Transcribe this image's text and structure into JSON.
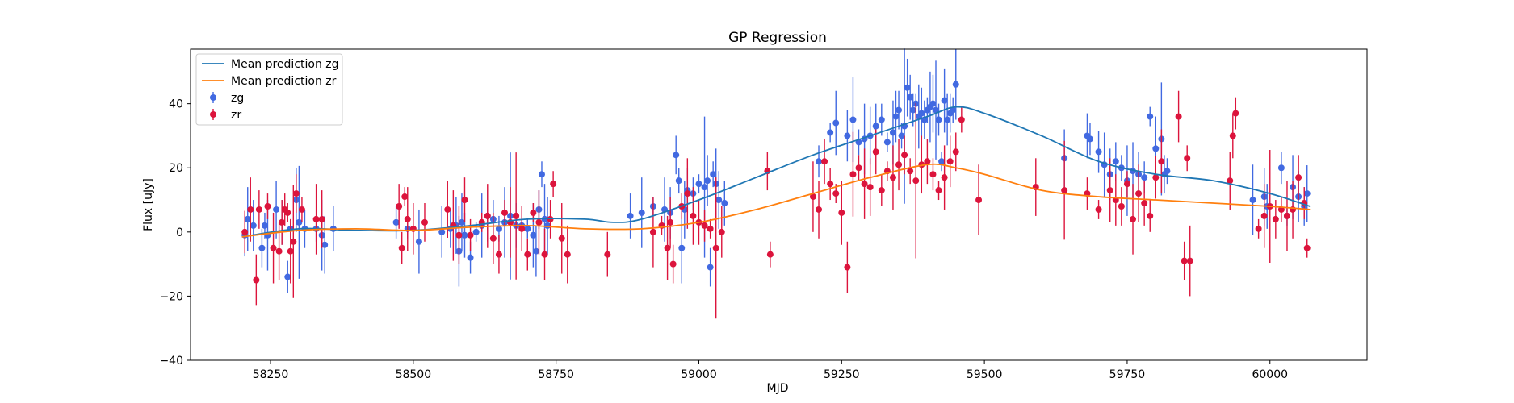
{
  "chart_data": {
    "type": "scatter",
    "title": "GP Regression",
    "xlabel": "MJD",
    "ylabel": "Flux [uJy]",
    "xlim": [
      58110,
      60170
    ],
    "ylim": [
      -40,
      57
    ],
    "xticks": [
      58250,
      58500,
      58750,
      59000,
      59250,
      59500,
      59750,
      60000
    ],
    "xtick_labels": [
      "58250",
      "58500",
      "58750",
      "59000",
      "59250",
      "59500",
      "59750",
      "60000"
    ],
    "yticks": [
      -40,
      -20,
      0,
      20,
      40
    ],
    "ytick_labels": [
      "−40",
      "−20",
      "0",
      "20",
      "40"
    ],
    "grid": false,
    "legend_position": "upper left",
    "legend": [
      {
        "label": "Mean prediction zg",
        "kind": "line",
        "color": "#1f77b4"
      },
      {
        "label": "Mean prediction zr",
        "kind": "line",
        "color": "#ff7f0e"
      },
      {
        "label": "zg",
        "kind": "errorbar",
        "color": "#4169e1"
      },
      {
        "label": "zr",
        "kind": "errorbar",
        "color": "#dc143c"
      }
    ],
    "series": [
      {
        "name": "Mean prediction zg",
        "kind": "line",
        "color": "#1f77b4",
        "x": [
          58200,
          58300,
          58400,
          58500,
          58600,
          58700,
          58800,
          58850,
          58900,
          59000,
          59100,
          59200,
          59300,
          59400,
          59450,
          59500,
          59600,
          59700,
          59800,
          59900,
          60000,
          60070
        ],
        "y": [
          -1.5,
          1,
          0.5,
          0.5,
          2,
          4,
          4,
          3,
          4,
          10,
          17,
          24,
          30,
          36,
          39,
          37,
          30,
          22,
          18,
          16,
          12,
          8
        ]
      },
      {
        "name": "Mean prediction zr",
        "kind": "line",
        "color": "#ff7f0e",
        "x": [
          58200,
          58300,
          58400,
          58500,
          58600,
          58700,
          58800,
          58900,
          59000,
          59100,
          59200,
          59300,
          59400,
          59450,
          59500,
          59600,
          59700,
          59800,
          59900,
          60000,
          60070
        ],
        "y": [
          -1.5,
          0.5,
          1,
          0.5,
          1.5,
          2,
          1,
          1,
          3,
          7,
          12,
          17,
          21,
          20,
          18,
          13,
          11,
          10,
          9,
          8,
          7
        ]
      },
      {
        "name": "zg",
        "kind": "errorbar",
        "color": "#4169e1",
        "x": [
          58205,
          58210,
          58220,
          58235,
          58240,
          58245,
          58260,
          58270,
          58280,
          58285,
          58295,
          58300,
          58310,
          58330,
          58340,
          58345,
          58360,
          58470,
          58490,
          58510,
          58550,
          58565,
          58575,
          58580,
          58585,
          58590,
          58600,
          58610,
          58620,
          58630,
          58640,
          58650,
          58660,
          58670,
          58680,
          58690,
          58700,
          58710,
          58715,
          58720,
          58725,
          58730,
          58735,
          58880,
          58900,
          58920,
          58940,
          58950,
          58960,
          58965,
          58970,
          58975,
          58980,
          58990,
          59000,
          59010,
          59015,
          59020,
          59025,
          59030,
          59035,
          59045,
          59210,
          59230,
          59240,
          59260,
          59270,
          59280,
          59290,
          59300,
          59310,
          59320,
          59330,
          59340,
          59345,
          59350,
          59355,
          59360,
          59365,
          59370,
          59375,
          59380,
          59385,
          59390,
          59395,
          59400,
          59405,
          59410,
          59415,
          59420,
          59425,
          59430,
          59435,
          59440,
          59445,
          59450,
          59640,
          59680,
          59685,
          59700,
          59710,
          59720,
          59730,
          59740,
          59750,
          59760,
          59770,
          59780,
          59790,
          59800,
          59810,
          59815,
          59820,
          59970,
          59990,
          59995,
          60020,
          60030,
          60040,
          60050,
          60060,
          60065
        ],
        "y": [
          -1,
          4,
          2,
          -5,
          2,
          -1,
          7,
          3,
          -14,
          1,
          10,
          3,
          1,
          1,
          -1,
          -4,
          1,
          3,
          1,
          -3,
          0,
          1,
          2,
          -6,
          3,
          -1,
          -8,
          0,
          2,
          5,
          4,
          1,
          3,
          5,
          2,
          2,
          1,
          -1,
          -6,
          7,
          18,
          4,
          2,
          5,
          6,
          8,
          7,
          6,
          24,
          16,
          -5,
          7,
          13,
          12,
          15,
          14,
          16,
          -11,
          18,
          15,
          10,
          9,
          22,
          31,
          34,
          30,
          35,
          28,
          29,
          30,
          33,
          35,
          28,
          31,
          36,
          38,
          30,
          33,
          45,
          42,
          38,
          40,
          36,
          37,
          35,
          38,
          39,
          40,
          38,
          35,
          22,
          41,
          35,
          37,
          38,
          46,
          23,
          30,
          29,
          25,
          21,
          18,
          22,
          20,
          16,
          19,
          18,
          17,
          36,
          26,
          29,
          18,
          19,
          10,
          11,
          8,
          20,
          5,
          14,
          11,
          8,
          12
        ]
      },
      {
        "name": "zr",
        "kind": "errorbar",
        "color": "#dc143c",
        "x": [
          58205,
          58215,
          58225,
          58230,
          58245,
          58255,
          58265,
          58270,
          58275,
          58280,
          58285,
          58290,
          58295,
          58305,
          58330,
          58340,
          58475,
          58480,
          58485,
          58490,
          58500,
          58520,
          58560,
          58570,
          58580,
          58590,
          58600,
          58620,
          58630,
          58640,
          58650,
          58660,
          58670,
          58680,
          58690,
          58700,
          58710,
          58720,
          58730,
          58740,
          58745,
          58760,
          58770,
          58840,
          58920,
          58935,
          58945,
          58950,
          58955,
          58970,
          58980,
          58990,
          59000,
          59010,
          59020,
          59030,
          59040,
          59120,
          59125,
          59200,
          59210,
          59220,
          59230,
          59240,
          59250,
          59260,
          59270,
          59280,
          59290,
          59300,
          59310,
          59320,
          59330,
          59340,
          59350,
          59360,
          59370,
          59380,
          59390,
          59400,
          59410,
          59420,
          59430,
          59440,
          59450,
          59460,
          59490,
          59590,
          59640,
          59680,
          59700,
          59720,
          59730,
          59740,
          59750,
          59760,
          59770,
          59780,
          59790,
          59800,
          59810,
          59840,
          59850,
          59855,
          59860,
          59930,
          59935,
          59940,
          59980,
          59990,
          60000,
          60010,
          60020,
          60030,
          60040,
          60050,
          60060,
          60065
        ],
        "y": [
          0,
          7,
          -15,
          7,
          8,
          -5,
          -6,
          3,
          7,
          6,
          -6,
          -3,
          12,
          7,
          4,
          4,
          8,
          -5,
          11,
          4,
          1,
          3,
          7,
          2,
          -1,
          10,
          -1,
          3,
          5,
          -2,
          -7,
          6,
          3,
          5,
          1,
          -7,
          6,
          3,
          -7,
          4,
          15,
          -2,
          -7,
          -7,
          0,
          2,
          -5,
          3,
          -10,
          8,
          12,
          5,
          3,
          2,
          1,
          -5,
          0,
          19,
          -7,
          11,
          7,
          22,
          15,
          12,
          6,
          -11,
          18,
          20,
          15,
          14,
          25,
          13,
          19,
          17,
          21,
          24,
          19,
          16,
          21,
          22,
          18,
          13,
          17,
          22,
          25,
          35,
          10,
          14,
          13,
          12,
          7,
          13,
          10,
          8,
          15,
          4,
          12,
          9,
          5,
          17,
          22,
          36,
          -9,
          23,
          -9,
          16,
          30,
          37,
          1,
          5,
          8,
          4,
          7,
          5,
          7,
          17,
          9,
          -5
        ]
      }
    ]
  }
}
